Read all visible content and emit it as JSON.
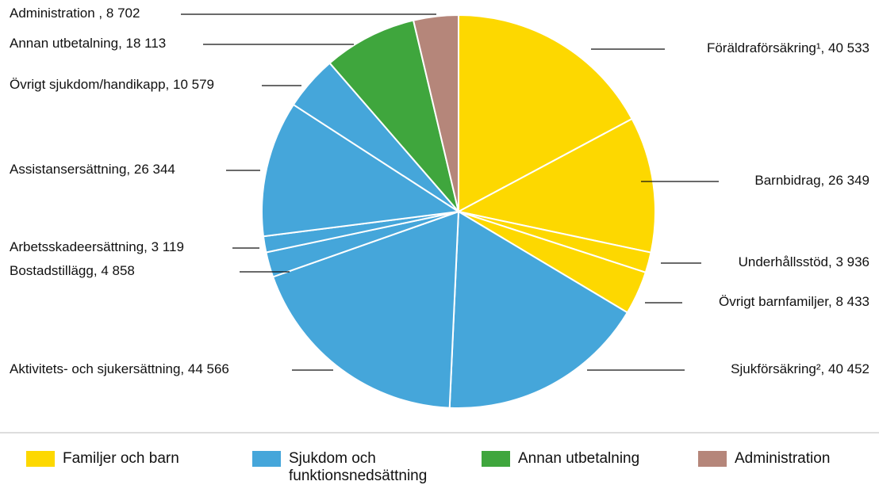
{
  "chart_data": {
    "type": "pie",
    "categories": [
      "Föräldraförsäkring¹,",
      "Barnbidrag,",
      "Underhållsstöd,",
      "Övrigt barnfamiljer,",
      "Sjukförsäkring²,",
      "Aktivitets- och sjukersättning,",
      "Bostadstillägg,",
      "Arbetsskadeersättning,",
      "Assistansersättning,",
      "Övrigt sjukdom/handikapp,",
      "Annan utbetalning,",
      "Administration ,"
    ],
    "values": [
      40533,
      26349,
      3936,
      8433,
      40452,
      44566,
      4858,
      3119,
      26344,
      10579,
      18113,
      8702
    ],
    "value_labels": [
      "40 533",
      "26 349",
      "3 936",
      "8 433",
      "40 452",
      "44 566",
      "4 858",
      "3 119",
      "26 344",
      "10 579",
      "18 113",
      "8 702"
    ],
    "colors": [
      "#fdd800",
      "#fdd800",
      "#fdd800",
      "#fdd800",
      "#45a6da",
      "#45a6da",
      "#45a6da",
      "#45a6da",
      "#45a6da",
      "#45a6da",
      "#3fa63d",
      "#b5867a"
    ],
    "legend": [
      {
        "name": "Familjer och barn",
        "color": "#fdd800"
      },
      {
        "name": "Sjukdom och funktionsnedsättning",
        "color": "#45a6da"
      },
      {
        "name": "Annan utbetalning",
        "color": "#3fa63d"
      },
      {
        "name": "Administration",
        "color": "#b5867a"
      }
    ]
  }
}
